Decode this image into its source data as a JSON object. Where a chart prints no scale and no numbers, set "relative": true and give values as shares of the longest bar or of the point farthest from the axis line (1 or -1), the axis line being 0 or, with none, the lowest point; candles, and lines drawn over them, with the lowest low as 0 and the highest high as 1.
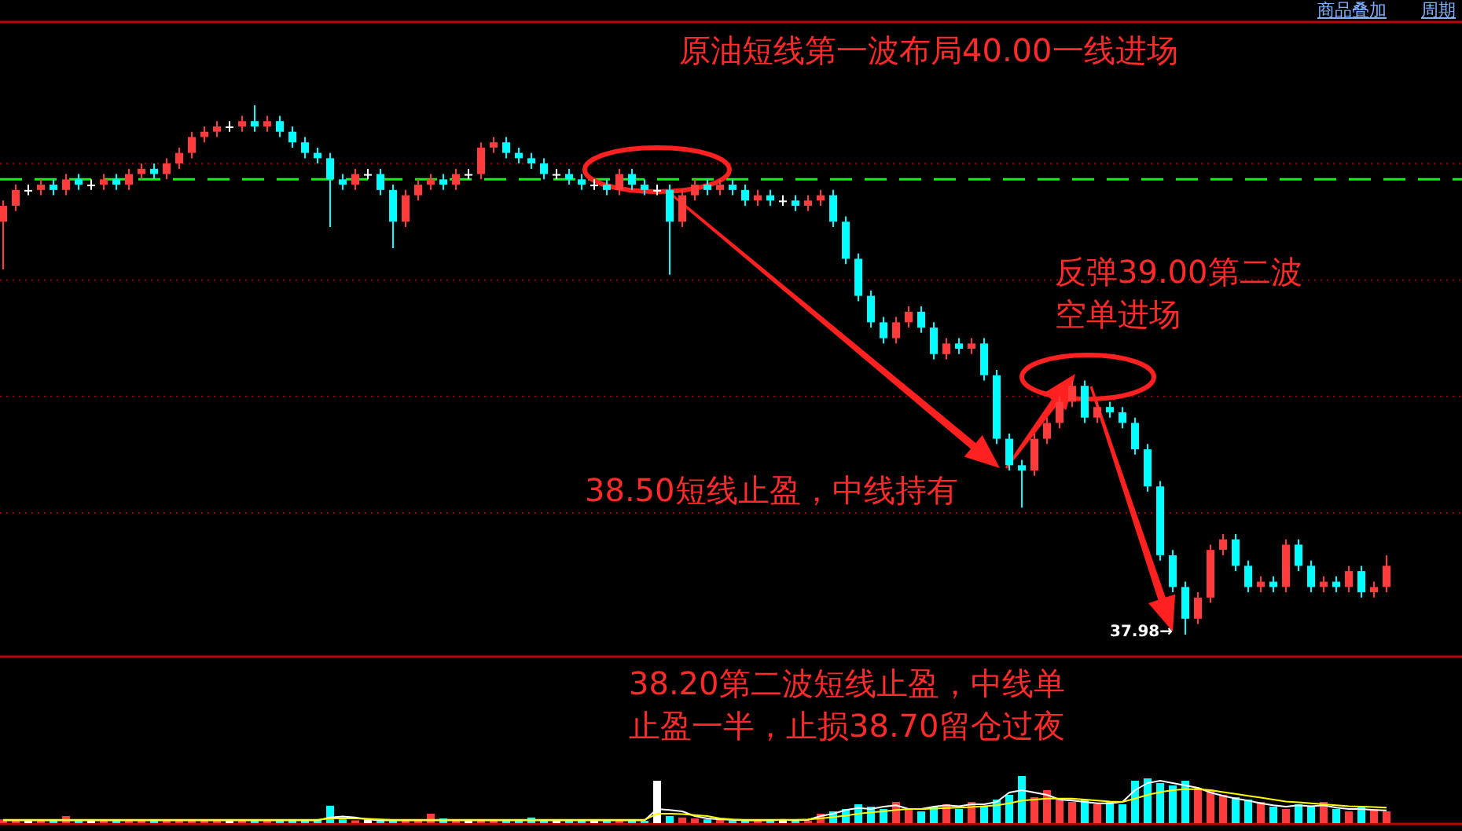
{
  "chart_data": [
    {
      "type": "candlestick",
      "relative": true,
      "title": "原油短线第一波布局40.00一线进场",
      "categories": [
        null,
        null,
        null,
        null,
        null,
        null,
        null,
        null,
        null,
        null,
        null,
        null,
        null,
        null,
        null,
        null,
        null,
        null,
        null,
        null,
        null,
        null,
        null,
        null,
        null,
        null,
        null,
        null,
        null,
        null,
        null,
        null,
        null,
        null,
        null,
        null,
        null,
        null,
        null,
        null,
        null,
        null,
        null,
        null,
        null,
        null,
        null,
        null,
        null,
        null,
        null,
        null,
        null,
        null,
        null,
        null,
        null,
        null,
        null,
        null,
        null,
        null,
        null,
        null,
        null,
        null,
        null,
        null,
        null,
        null,
        null,
        null,
        null,
        null,
        null,
        null,
        null,
        null,
        null,
        null,
        null,
        null,
        null,
        null,
        null,
        null,
        null,
        null,
        null,
        null,
        null,
        null,
        null,
        null,
        null,
        null,
        null,
        null,
        null,
        null,
        null,
        null,
        null,
        null,
        null,
        null,
        null,
        null,
        null,
        null,
        null
      ],
      "ohlc": [
        [
          0.78,
          0.82,
          0.69,
          0.81
        ],
        [
          0.81,
          0.85,
          0.8,
          0.84
        ],
        [
          0.84,
          0.85,
          0.83,
          0.84
        ],
        [
          0.84,
          0.86,
          0.83,
          0.85
        ],
        [
          0.85,
          0.86,
          0.83,
          0.84
        ],
        [
          0.84,
          0.87,
          0.83,
          0.86
        ],
        [
          0.86,
          0.87,
          0.84,
          0.85
        ],
        [
          0.85,
          0.86,
          0.84,
          0.85
        ],
        [
          0.85,
          0.87,
          0.84,
          0.86
        ],
        [
          0.86,
          0.87,
          0.84,
          0.85
        ],
        [
          0.85,
          0.88,
          0.84,
          0.87
        ],
        [
          0.87,
          0.89,
          0.86,
          0.88
        ],
        [
          0.88,
          0.89,
          0.86,
          0.87
        ],
        [
          0.87,
          0.9,
          0.86,
          0.89
        ],
        [
          0.89,
          0.92,
          0.88,
          0.91
        ],
        [
          0.91,
          0.95,
          0.9,
          0.94
        ],
        [
          0.94,
          0.96,
          0.93,
          0.95
        ],
        [
          0.95,
          0.97,
          0.94,
          0.96
        ],
        [
          0.96,
          0.97,
          0.95,
          0.96
        ],
        [
          0.96,
          0.98,
          0.95,
          0.97
        ],
        [
          0.97,
          1.0,
          0.95,
          0.96
        ],
        [
          0.96,
          0.98,
          0.95,
          0.97
        ],
        [
          0.97,
          0.98,
          0.94,
          0.95
        ],
        [
          0.95,
          0.96,
          0.92,
          0.93
        ],
        [
          0.93,
          0.94,
          0.9,
          0.91
        ],
        [
          0.91,
          0.92,
          0.89,
          0.9
        ],
        [
          0.9,
          0.91,
          0.77,
          0.86
        ],
        [
          0.86,
          0.87,
          0.84,
          0.85
        ],
        [
          0.85,
          0.88,
          0.84,
          0.87
        ],
        [
          0.87,
          0.88,
          0.86,
          0.87
        ],
        [
          0.87,
          0.88,
          0.83,
          0.84
        ],
        [
          0.84,
          0.85,
          0.73,
          0.78
        ],
        [
          0.78,
          0.84,
          0.77,
          0.83
        ],
        [
          0.83,
          0.86,
          0.82,
          0.85
        ],
        [
          0.85,
          0.87,
          0.84,
          0.86
        ],
        [
          0.86,
          0.87,
          0.84,
          0.85
        ],
        [
          0.85,
          0.88,
          0.84,
          0.87
        ],
        [
          0.87,
          0.88,
          0.86,
          0.87
        ],
        [
          0.87,
          0.93,
          0.86,
          0.92
        ],
        [
          0.92,
          0.94,
          0.91,
          0.93
        ],
        [
          0.93,
          0.94,
          0.9,
          0.91
        ],
        [
          0.91,
          0.92,
          0.89,
          0.9
        ],
        [
          0.9,
          0.91,
          0.88,
          0.89
        ],
        [
          0.89,
          0.9,
          0.86,
          0.87
        ],
        [
          0.87,
          0.88,
          0.86,
          0.87
        ],
        [
          0.87,
          0.88,
          0.85,
          0.86
        ],
        [
          0.86,
          0.87,
          0.84,
          0.85
        ],
        [
          0.85,
          0.86,
          0.84,
          0.85
        ],
        [
          0.85,
          0.86,
          0.83,
          0.84
        ],
        [
          0.84,
          0.88,
          0.83,
          0.87
        ],
        [
          0.87,
          0.88,
          0.84,
          0.85
        ],
        [
          0.85,
          0.86,
          0.83,
          0.84
        ],
        [
          0.84,
          0.85,
          0.83,
          0.84
        ],
        [
          0.84,
          0.85,
          0.68,
          0.78
        ],
        [
          0.78,
          0.84,
          0.77,
          0.83
        ],
        [
          0.83,
          0.86,
          0.82,
          0.85
        ],
        [
          0.85,
          0.86,
          0.83,
          0.84
        ],
        [
          0.84,
          0.86,
          0.83,
          0.85
        ],
        [
          0.85,
          0.86,
          0.83,
          0.84
        ],
        [
          0.84,
          0.85,
          0.81,
          0.82
        ],
        [
          0.82,
          0.84,
          0.81,
          0.83
        ],
        [
          0.83,
          0.84,
          0.81,
          0.82
        ],
        [
          0.82,
          0.83,
          0.81,
          0.82
        ],
        [
          0.82,
          0.83,
          0.8,
          0.81
        ],
        [
          0.81,
          0.83,
          0.8,
          0.82
        ],
        [
          0.82,
          0.84,
          0.81,
          0.83
        ],
        [
          0.83,
          0.84,
          0.77,
          0.78
        ],
        [
          0.78,
          0.79,
          0.7,
          0.71
        ],
        [
          0.71,
          0.72,
          0.63,
          0.64
        ],
        [
          0.64,
          0.65,
          0.58,
          0.59
        ],
        [
          0.59,
          0.6,
          0.55,
          0.56
        ],
        [
          0.56,
          0.6,
          0.55,
          0.59
        ],
        [
          0.59,
          0.62,
          0.58,
          0.61
        ],
        [
          0.61,
          0.62,
          0.57,
          0.58
        ],
        [
          0.58,
          0.59,
          0.52,
          0.53
        ],
        [
          0.53,
          0.56,
          0.52,
          0.55
        ],
        [
          0.55,
          0.56,
          0.53,
          0.54
        ],
        [
          0.54,
          0.56,
          0.53,
          0.55
        ],
        [
          0.55,
          0.56,
          0.48,
          0.49
        ],
        [
          0.49,
          0.5,
          0.36,
          0.37
        ],
        [
          0.37,
          0.38,
          0.31,
          0.32
        ],
        [
          0.32,
          0.33,
          0.24,
          0.31
        ],
        [
          0.31,
          0.38,
          0.3,
          0.37
        ],
        [
          0.37,
          0.41,
          0.36,
          0.4
        ],
        [
          0.4,
          0.45,
          0.39,
          0.44
        ],
        [
          0.44,
          0.48,
          0.43,
          0.47
        ],
        [
          0.47,
          0.48,
          0.4,
          0.41
        ],
        [
          0.41,
          0.44,
          0.4,
          0.43
        ],
        [
          0.43,
          0.44,
          0.41,
          0.42
        ],
        [
          0.42,
          0.43,
          0.39,
          0.4
        ],
        [
          0.4,
          0.41,
          0.34,
          0.35
        ],
        [
          0.35,
          0.36,
          0.27,
          0.28
        ],
        [
          0.28,
          0.29,
          0.14,
          0.15
        ],
        [
          0.15,
          0.16,
          0.08,
          0.09
        ],
        [
          0.09,
          0.1,
          0.0,
          0.03
        ],
        [
          0.03,
          0.08,
          0.02,
          0.07
        ],
        [
          0.07,
          0.17,
          0.06,
          0.16
        ],
        [
          0.16,
          0.19,
          0.15,
          0.18
        ],
        [
          0.18,
          0.19,
          0.12,
          0.13
        ],
        [
          0.13,
          0.14,
          0.08,
          0.09
        ],
        [
          0.09,
          0.11,
          0.08,
          0.1
        ],
        [
          0.1,
          0.11,
          0.08,
          0.09
        ],
        [
          0.09,
          0.18,
          0.08,
          0.17
        ],
        [
          0.17,
          0.18,
          0.12,
          0.13
        ],
        [
          0.13,
          0.14,
          0.08,
          0.09
        ],
        [
          0.09,
          0.11,
          0.08,
          0.1
        ],
        [
          0.1,
          0.11,
          0.08,
          0.09
        ],
        [
          0.09,
          0.13,
          0.08,
          0.12
        ],
        [
          0.12,
          0.13,
          0.07,
          0.08
        ],
        [
          0.08,
          0.1,
          0.07,
          0.09
        ],
        [
          0.09,
          0.15,
          0.08,
          0.13
        ]
      ],
      "colors": [
        "#ff3b3b",
        "#ff3b3b",
        "#ffffff",
        "#ff3b3b",
        "#00ffff",
        "#ff3b3b",
        "#00ffff",
        "#ffffff",
        "#ff3b3b",
        "#00ffff",
        "#ff3b3b",
        "#ff3b3b",
        "#00ffff",
        "#ff3b3b",
        "#ff3b3b",
        "#ff3b3b",
        "#ff3b3b",
        "#ff3b3b",
        "#ffffff",
        "#ff3b3b",
        "#00ffff",
        "#ff3b3b",
        "#00ffff",
        "#00ffff",
        "#00ffff",
        "#00ffff",
        "#00ffff",
        "#00ffff",
        "#ff3b3b",
        "#ffffff",
        "#00ffff",
        "#00ffff",
        "#ff3b3b",
        "#ff3b3b",
        "#ff3b3b",
        "#00ffff",
        "#ff3b3b",
        "#ffffff",
        "#ff3b3b",
        "#ff3b3b",
        "#00ffff",
        "#00ffff",
        "#00ffff",
        "#00ffff",
        "#ffffff",
        "#00ffff",
        "#00ffff",
        "#ffffff",
        "#00ffff",
        "#ff3b3b",
        "#00ffff",
        "#00ffff",
        "#ffffff",
        "#00ffff",
        "#ff3b3b",
        "#ff3b3b",
        "#00ffff",
        "#ff3b3b",
        "#00ffff",
        "#00ffff",
        "#ff3b3b",
        "#00ffff",
        "#ffffff",
        "#00ffff",
        "#ff3b3b",
        "#ff3b3b",
        "#00ffff",
        "#00ffff",
        "#00ffff",
        "#00ffff",
        "#00ffff",
        "#ff3b3b",
        "#ff3b3b",
        "#00ffff",
        "#00ffff",
        "#ff3b3b",
        "#00ffff",
        "#ff3b3b",
        "#00ffff",
        "#00ffff",
        "#00ffff",
        "#00ffff",
        "#ff3b3b",
        "#ff3b3b",
        "#ff3b3b",
        "#ff3b3b",
        "#00ffff",
        "#ff3b3b",
        "#00ffff",
        "#00ffff",
        "#00ffff",
        "#00ffff",
        "#00ffff",
        "#00ffff",
        "#00ffff",
        "#ff3b3b",
        "#ff3b3b",
        "#ff3b3b",
        "#00ffff",
        "#00ffff",
        "#ff3b3b",
        "#00ffff",
        "#ff3b3b",
        "#00ffff",
        "#00ffff",
        "#ff3b3b",
        "#00ffff",
        "#ff3b3b",
        "#00ffff",
        "#ff3b3b",
        "#ff3b3b"
      ],
      "ref_lines": [
        {
          "axis": "y",
          "value": 0.86,
          "color": "#00ff00",
          "line_style": "dashed"
        },
        {
          "axis": "y",
          "value": 0.89,
          "color": "#9a0000",
          "line_style": "dotted"
        },
        {
          "axis": "y",
          "value": 0.67,
          "color": "#9a0000",
          "line_style": "dotted"
        },
        {
          "axis": "y",
          "value": 0.45,
          "color": "#9a0000",
          "line_style": "dotted"
        },
        {
          "axis": "y",
          "value": 0.23,
          "color": "#9a0000",
          "line_style": "dotted"
        }
      ],
      "annotations": [
        "反弹39.00第二波空单进场",
        "38.50短线止盈，中线持有",
        "37.98→",
        "38.20第二波短线止盈，中线单止盈一半，止损38.70留仓过夜",
        "商品叠加",
        "周期"
      ]
    },
    {
      "type": "bar",
      "relative": true,
      "categories": [
        null,
        null,
        null,
        null,
        null,
        null,
        null,
        null,
        null,
        null,
        null,
        null,
        null,
        null,
        null,
        null,
        null,
        null,
        null,
        null,
        null,
        null,
        null,
        null,
        null,
        null,
        null,
        null,
        null,
        null,
        null,
        null,
        null,
        null,
        null,
        null,
        null,
        null,
        null,
        null,
        null,
        null,
        null,
        null,
        null,
        null,
        null,
        null,
        null,
        null,
        null,
        null,
        null,
        null,
        null,
        null,
        null,
        null,
        null,
        null,
        null,
        null,
        null,
        null,
        null,
        null,
        null,
        null,
        null,
        null,
        null,
        null,
        null,
        null,
        null,
        null,
        null,
        null,
        null,
        null,
        null,
        null,
        null,
        null,
        null,
        null,
        null,
        null,
        null,
        null,
        null,
        null,
        null,
        null,
        null,
        null,
        null,
        null,
        null,
        null,
        null,
        null,
        null,
        null,
        null,
        null,
        null,
        null,
        null,
        null,
        null
      ],
      "series": [
        {
          "type": "bar",
          "values": [
            0.08,
            0.06,
            0.07,
            0.05,
            0.06,
            0.15,
            0.06,
            0.05,
            0.07,
            0.06,
            0.05,
            0.06,
            0.05,
            0.07,
            0.08,
            0.06,
            0.05,
            0.06,
            0.05,
            0.07,
            0.05,
            0.06,
            0.08,
            0.05,
            0.06,
            0.07,
            0.37,
            0.08,
            0.06,
            0.07,
            0.05,
            0.06,
            0.08,
            0.06,
            0.2,
            0.1,
            0.07,
            0.06,
            0.05,
            0.08,
            0.06,
            0.07,
            0.12,
            0.08,
            0.06,
            0.07,
            0.05,
            0.06,
            0.08,
            0.07,
            0.06,
            0.05,
            0.9,
            0.15,
            0.12,
            0.1,
            0.08,
            0.07,
            0.06,
            0.08,
            0.05,
            0.07,
            0.06,
            0.08,
            0.06,
            0.2,
            0.25,
            0.3,
            0.4,
            0.35,
            0.3,
            0.45,
            0.3,
            0.25,
            0.35,
            0.4,
            0.3,
            0.45,
            0.35,
            0.5,
            0.6,
            1.0,
            0.55,
            0.7,
            0.5,
            0.45,
            0.5,
            0.4,
            0.45,
            0.4,
            0.9,
            0.95,
            0.85,
            0.8,
            0.9,
            0.75,
            0.7,
            0.6,
            0.55,
            0.5,
            0.45,
            0.35,
            0.3,
            0.4,
            0.35,
            0.45,
            0.3,
            0.25,
            0.35,
            0.3,
            0.25
          ],
          "colors": [
            "#ff3b3b",
            "#ff3b3b",
            "#ffffff",
            "#ff3b3b",
            "#00ffff",
            "#ff3b3b",
            "#00ffff",
            "#ffffff",
            "#ff3b3b",
            "#00ffff",
            "#ff3b3b",
            "#ff3b3b",
            "#00ffff",
            "#ff3b3b",
            "#ff3b3b",
            "#ff3b3b",
            "#ff3b3b",
            "#ff3b3b",
            "#ffffff",
            "#ff3b3b",
            "#00ffff",
            "#ff3b3b",
            "#00ffff",
            "#00ffff",
            "#00ffff",
            "#00ffff",
            "#00ffff",
            "#00ffff",
            "#ff3b3b",
            "#ffffff",
            "#00ffff",
            "#00ffff",
            "#ff3b3b",
            "#ff3b3b",
            "#ff3b3b",
            "#00ffff",
            "#ff3b3b",
            "#ffffff",
            "#ff3b3b",
            "#ff3b3b",
            "#00ffff",
            "#00ffff",
            "#00ffff",
            "#00ffff",
            "#ffffff",
            "#00ffff",
            "#00ffff",
            "#ffffff",
            "#00ffff",
            "#ff3b3b",
            "#00ffff",
            "#00ffff",
            "#ffffff",
            "#00ffff",
            "#ff3b3b",
            "#ff3b3b",
            "#00ffff",
            "#ff3b3b",
            "#00ffff",
            "#00ffff",
            "#ff3b3b",
            "#00ffff",
            "#ffffff",
            "#00ffff",
            "#ff3b3b",
            "#ff3b3b",
            "#00ffff",
            "#00ffff",
            "#00ffff",
            "#00ffff",
            "#00ffff",
            "#ff3b3b",
            "#ff3b3b",
            "#00ffff",
            "#00ffff",
            "#ff3b3b",
            "#00ffff",
            "#ff3b3b",
            "#00ffff",
            "#00ffff",
            "#00ffff",
            "#00ffff",
            "#ff3b3b",
            "#ff3b3b",
            "#ff3b3b",
            "#ff3b3b",
            "#00ffff",
            "#ff3b3b",
            "#00ffff",
            "#00ffff",
            "#00ffff",
            "#00ffff",
            "#00ffff",
            "#00ffff",
            "#00ffff",
            "#ff3b3b",
            "#ff3b3b",
            "#ff3b3b",
            "#00ffff",
            "#00ffff",
            "#ff3b3b",
            "#00ffff",
            "#ff3b3b",
            "#00ffff",
            "#00ffff",
            "#ff3b3b",
            "#00ffff",
            "#ff3b3b",
            "#00ffff",
            "#ff3b3b",
            "#ff3b3b"
          ]
        },
        {
          "type": "line",
          "color": "#ffffff",
          "values": [
            0.06,
            0.06,
            0.06,
            0.06,
            0.06,
            0.06,
            0.06,
            0.06,
            0.06,
            0.06,
            0.06,
            0.06,
            0.06,
            0.06,
            0.06,
            0.06,
            0.06,
            0.06,
            0.06,
            0.06,
            0.06,
            0.06,
            0.06,
            0.06,
            0.06,
            0.06,
            0.12,
            0.14,
            0.12,
            0.08,
            0.06,
            0.06,
            0.06,
            0.06,
            0.06,
            0.06,
            0.06,
            0.06,
            0.06,
            0.06,
            0.06,
            0.06,
            0.06,
            0.06,
            0.06,
            0.06,
            0.06,
            0.06,
            0.06,
            0.06,
            0.06,
            0.06,
            0.3,
            0.28,
            0.25,
            0.15,
            0.1,
            0.08,
            0.07,
            0.06,
            0.06,
            0.06,
            0.07,
            0.06,
            0.07,
            0.15,
            0.2,
            0.28,
            0.32,
            0.3,
            0.35,
            0.38,
            0.3,
            0.3,
            0.35,
            0.38,
            0.36,
            0.4,
            0.4,
            0.45,
            0.65,
            0.7,
            0.65,
            0.6,
            0.5,
            0.48,
            0.45,
            0.42,
            0.42,
            0.45,
            0.7,
            0.85,
            0.9,
            0.85,
            0.8,
            0.75,
            0.65,
            0.58,
            0.52,
            0.48,
            0.42,
            0.38,
            0.35,
            0.38,
            0.36,
            0.38,
            0.33,
            0.3,
            0.3,
            0.28,
            0.27
          ]
        },
        {
          "type": "line",
          "color": "#ffff00",
          "values": [
            0.07,
            0.07,
            0.07,
            0.07,
            0.07,
            0.07,
            0.07,
            0.07,
            0.07,
            0.07,
            0.07,
            0.07,
            0.07,
            0.07,
            0.07,
            0.07,
            0.07,
            0.07,
            0.07,
            0.07,
            0.07,
            0.07,
            0.07,
            0.07,
            0.07,
            0.07,
            0.1,
            0.1,
            0.1,
            0.09,
            0.08,
            0.07,
            0.07,
            0.07,
            0.07,
            0.07,
            0.07,
            0.07,
            0.07,
            0.07,
            0.07,
            0.07,
            0.07,
            0.07,
            0.07,
            0.07,
            0.07,
            0.07,
            0.07,
            0.07,
            0.07,
            0.07,
            0.2,
            0.2,
            0.19,
            0.17,
            0.15,
            0.1,
            0.08,
            0.07,
            0.07,
            0.07,
            0.07,
            0.07,
            0.08,
            0.1,
            0.13,
            0.16,
            0.2,
            0.23,
            0.25,
            0.28,
            0.3,
            0.3,
            0.31,
            0.32,
            0.33,
            0.34,
            0.36,
            0.38,
            0.42,
            0.48,
            0.5,
            0.52,
            0.52,
            0.52,
            0.5,
            0.48,
            0.46,
            0.45,
            0.52,
            0.6,
            0.66,
            0.7,
            0.72,
            0.72,
            0.7,
            0.66,
            0.62,
            0.58,
            0.54,
            0.5,
            0.46,
            0.44,
            0.42,
            0.4,
            0.38,
            0.36,
            0.35,
            0.34,
            0.33
          ]
        }
      ]
    }
  ]
}
